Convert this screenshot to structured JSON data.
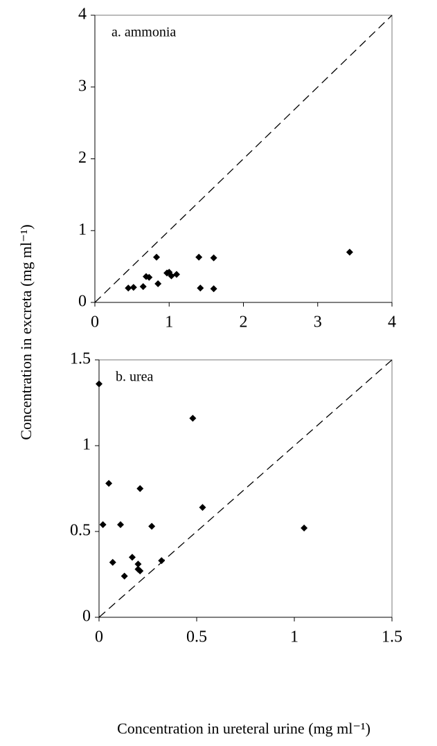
{
  "chart_data": [
    {
      "type": "scatter",
      "annotation": "a. ammonia",
      "y_label": "Concentration in excreta (mg ml⁻¹)",
      "x": [
        0.45,
        0.52,
        0.65,
        0.69,
        0.73,
        0.83,
        0.85,
        0.97,
        1.0,
        1.03,
        1.1,
        1.4,
        1.42,
        1.6,
        1.6,
        3.43
      ],
      "values": [
        0.2,
        0.21,
        0.22,
        0.36,
        0.35,
        0.63,
        0.26,
        0.41,
        0.42,
        0.37,
        0.39,
        0.63,
        0.2,
        0.62,
        0.19,
        0.7
      ],
      "color": "#000000",
      "xlim": [
        0,
        4
      ],
      "ylim": [
        0,
        4
      ],
      "xticks": [
        0,
        1,
        2,
        3,
        4
      ],
      "yticks": [
        0,
        1,
        2,
        3,
        4
      ],
      "diagonal": true
    },
    {
      "type": "scatter",
      "annotation": "b. urea",
      "x_label": "Concentration in ureteral urine (mg ml⁻¹)",
      "x": [
        0,
        0.48,
        0.05,
        0.21,
        0.02,
        0.11,
        0.27,
        0.53,
        1.05,
        0.07,
        0.17,
        0.2,
        0.2,
        0.21,
        0.32,
        0.13
      ],
      "values": [
        1.36,
        1.16,
        0.78,
        0.75,
        0.54,
        0.54,
        0.53,
        0.64,
        0.52,
        0.32,
        0.35,
        0.31,
        0.28,
        0.27,
        0.33,
        0.24
      ],
      "color": "#000000",
      "xlim": [
        0,
        1.5
      ],
      "ylim": [
        0,
        1.5
      ],
      "xticks": [
        0,
        0.5,
        1,
        1.5
      ],
      "yticks": [
        0,
        0.5,
        1,
        1.5
      ],
      "diagonal": true
    }
  ]
}
